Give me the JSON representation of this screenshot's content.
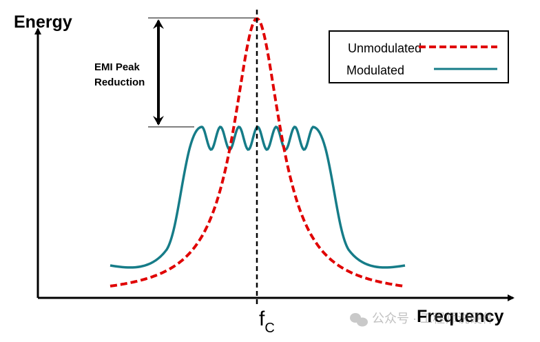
{
  "axes": {
    "y_label": "Energy",
    "x_label": "Frequency",
    "center_label": "f",
    "center_subscript": "C"
  },
  "annotation": {
    "line1": "EMI Peak",
    "line2": "Reduction"
  },
  "legend": {
    "items": [
      {
        "label": "Unmodulated",
        "color": "#e00000",
        "style": "dashed"
      },
      {
        "label": "Modulated",
        "color": "#167c88",
        "style": "solid"
      }
    ]
  },
  "watermark": {
    "text": "公众号 · 工程师说硬件"
  },
  "colors": {
    "unmodulated": "#e00000",
    "modulated": "#167c88",
    "axis": "#000000"
  }
}
